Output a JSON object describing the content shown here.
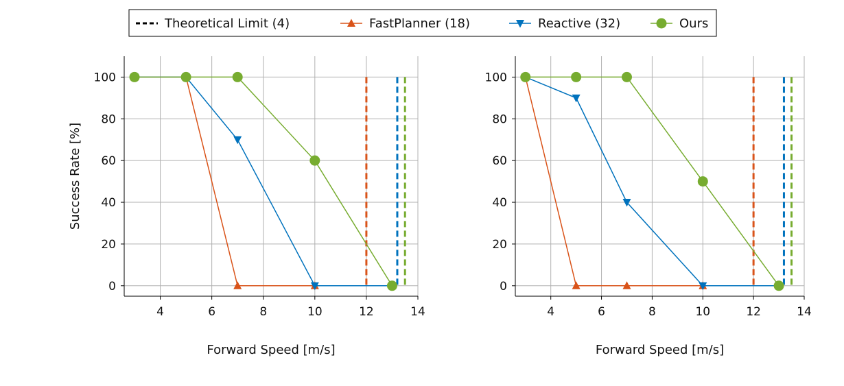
{
  "legend": {
    "placement": "top-center",
    "items": [
      {
        "label": "Theoretical Limit (4)",
        "color": "#000000",
        "marker": "dashed-line"
      },
      {
        "label": "FastPlanner (18)",
        "color": "#d95319",
        "marker": "triangle-up"
      },
      {
        "label": "Reactive (32)",
        "color": "#0072bd",
        "marker": "triangle-down"
      },
      {
        "label": "Ours",
        "color": "#77ac30",
        "marker": "circle"
      }
    ]
  },
  "chart_data": [
    {
      "type": "line",
      "xlabel": "Forward Speed [m/s]",
      "ylabel": "Success Rate [%]",
      "xlim": [
        2.6,
        14
      ],
      "ylim": [
        -5,
        110
      ],
      "xticks": [
        4,
        6,
        8,
        10,
        12,
        14
      ],
      "yticks": [
        0,
        20,
        40,
        60,
        80,
        100
      ],
      "grid": true,
      "series": [
        {
          "name": "FastPlanner (18)",
          "color": "#d95319",
          "marker": "triangle-up",
          "x": [
            3,
            5,
            7,
            10,
            13
          ],
          "y": [
            100,
            100,
            0,
            0,
            0
          ]
        },
        {
          "name": "Reactive (32)",
          "color": "#0072bd",
          "marker": "triangle-down",
          "x": [
            3,
            5,
            7,
            10,
            13
          ],
          "y": [
            100,
            100,
            70,
            0,
            0
          ]
        },
        {
          "name": "Ours",
          "color": "#77ac30",
          "marker": "circle",
          "x": [
            3,
            5,
            7,
            10,
            13
          ],
          "y": [
            100,
            100,
            100,
            60,
            0
          ]
        }
      ],
      "theoretical_limits": [
        {
          "series": "FastPlanner (18)",
          "x": 12.0,
          "color": "#d95319"
        },
        {
          "series": "Reactive (32)",
          "x": 13.2,
          "color": "#0072bd"
        },
        {
          "series": "Ours",
          "x": 13.5,
          "color": "#77ac30"
        }
      ]
    },
    {
      "type": "line",
      "xlabel": "Forward Speed [m/s]",
      "ylabel": "",
      "xlim": [
        2.6,
        14
      ],
      "ylim": [
        -5,
        110
      ],
      "xticks": [
        4,
        6,
        8,
        10,
        12,
        14
      ],
      "yticks": [
        0,
        20,
        40,
        60,
        80,
        100
      ],
      "grid": true,
      "series": [
        {
          "name": "FastPlanner (18)",
          "color": "#d95319",
          "marker": "triangle-up",
          "x": [
            3,
            5,
            7,
            10,
            13
          ],
          "y": [
            100,
            0,
            0,
            0,
            0
          ]
        },
        {
          "name": "Reactive (32)",
          "color": "#0072bd",
          "marker": "triangle-down",
          "x": [
            3,
            5,
            7,
            10,
            13
          ],
          "y": [
            100,
            90,
            40,
            0,
            0
          ]
        },
        {
          "name": "Ours",
          "color": "#77ac30",
          "marker": "circle",
          "x": [
            3,
            5,
            7,
            10,
            13
          ],
          "y": [
            100,
            100,
            100,
            50,
            0
          ]
        }
      ],
      "theoretical_limits": [
        {
          "series": "FastPlanner (18)",
          "x": 12.0,
          "color": "#d95319"
        },
        {
          "series": "Reactive (32)",
          "x": 13.2,
          "color": "#0072bd"
        },
        {
          "series": "Ours",
          "x": 13.5,
          "color": "#77ac30"
        }
      ]
    }
  ]
}
